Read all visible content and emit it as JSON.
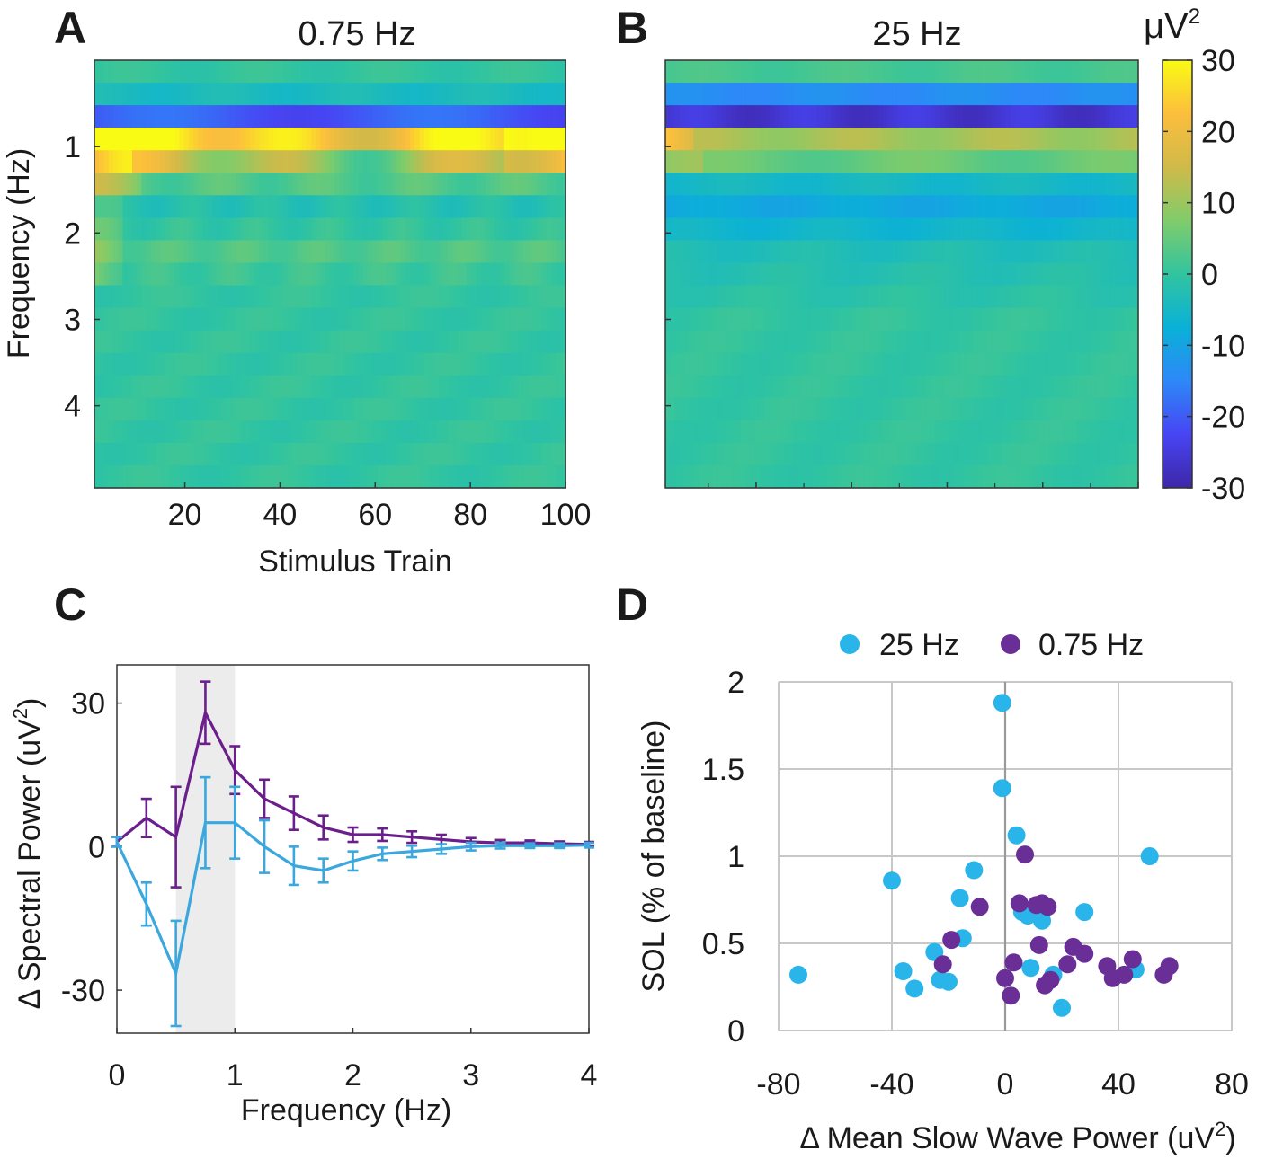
{
  "panel_letters": [
    "A",
    "B",
    "C",
    "D"
  ],
  "colorbar": {
    "unit_prefix": "μV",
    "unit_exp": "2",
    "range": [
      -30,
      30
    ],
    "ticks": [
      30,
      20,
      10,
      0,
      -10,
      -20,
      -30
    ],
    "colors": [
      "#3e26a8",
      "#4745f3",
      "#2d88f8",
      "#0ab1d7",
      "#31c49f",
      "#80cc6a",
      "#d0ba49",
      "#fcbe3d",
      "#f9fb14"
    ]
  },
  "chart_data": [
    {
      "id": "A",
      "type": "heatmap",
      "title": "0.75 Hz",
      "xlabel": "Stimulus Train",
      "ylabel": "Frequency (Hz)",
      "x_ticks": [
        20,
        40,
        60,
        80,
        100
      ],
      "xlim": [
        1,
        100
      ],
      "y_ticks": [
        1,
        2,
        3,
        4
      ],
      "ylim": [
        0,
        4.75
      ],
      "n_trains": 100,
      "freq_bins": [
        0.125,
        0.375,
        0.625,
        0.875,
        1.125,
        1.375,
        1.625,
        1.875,
        2.125,
        2.375,
        2.625,
        2.875,
        3.125,
        3.375,
        3.625,
        3.875,
        4.125,
        4.375,
        4.625
      ],
      "band_profile": [
        0,
        -4,
        -20,
        26,
        16,
        3,
        -2,
        0,
        3,
        1,
        0,
        0,
        0,
        0,
        0,
        0,
        0,
        0,
        0
      ]
    },
    {
      "id": "B",
      "type": "heatmap",
      "title": "25 Hz",
      "xlim": [
        1,
        100
      ],
      "ylim": [
        0,
        4.75
      ],
      "n_trains": 100,
      "freq_bins": [
        0.125,
        0.375,
        0.625,
        0.875,
        1.125,
        1.375,
        1.625,
        1.875,
        2.125,
        2.375,
        2.625,
        2.875,
        3.125,
        3.375,
        3.625,
        3.875,
        4.125,
        4.375,
        4.625
      ],
      "band_profile": [
        2,
        -14,
        -26,
        11,
        5,
        -5,
        -9,
        -6,
        -3,
        -2,
        -1,
        0,
        0,
        0,
        0,
        0,
        0,
        0,
        0
      ]
    },
    {
      "id": "C",
      "type": "line",
      "xlabel": "Frequency (Hz)",
      "ylabel_prefix": "Δ Spectral Power (uV",
      "ylabel_exp": "2",
      "ylabel_suffix": ")",
      "xlim": [
        0,
        4
      ],
      "ylim": [
        -39,
        38
      ],
      "x_ticks": [
        0,
        1,
        2,
        3,
        4
      ],
      "y_ticks": [
        30,
        0,
        -30
      ],
      "shaded_band": [
        0.5,
        1.0
      ],
      "x": [
        0,
        0.25,
        0.5,
        0.75,
        1.0,
        1.25,
        1.5,
        1.75,
        2.0,
        2.25,
        2.5,
        2.75,
        3.0,
        3.25,
        3.5,
        3.75,
        4.0
      ],
      "series": [
        {
          "name": "0.75 Hz",
          "color": "#6a1f8c",
          "values": [
            1,
            6,
            2,
            28,
            16,
            10,
            7,
            4,
            2.5,
            2.5,
            2,
            1.5,
            1,
            0.8,
            0.8,
            0.6,
            0.5
          ],
          "errors": [
            1,
            4,
            10.5,
            6.5,
            5,
            4,
            3.5,
            2.5,
            1.5,
            1.3,
            1.2,
            1,
            0.8,
            0.6,
            0.5,
            0.5,
            0.5
          ]
        },
        {
          "name": "25 Hz",
          "color": "#3aa7df",
          "values": [
            1,
            -12,
            -26.5,
            5,
            5,
            0,
            -4,
            -5,
            -3,
            -1.5,
            -1,
            -0.5,
            0,
            0.2,
            0.2,
            0.2,
            0.3
          ],
          "errors": [
            1,
            4.5,
            11,
            9.5,
            7.5,
            5.5,
            4,
            2.5,
            2,
            1.3,
            1.2,
            1,
            0.8,
            0.6,
            0.5,
            0.5,
            0.5
          ]
        }
      ]
    },
    {
      "id": "D",
      "type": "scatter",
      "xlabel_prefix": "Δ Mean Slow Wave Power (uV",
      "xlabel_exp": "2",
      "xlabel_suffix": ")",
      "ylabel": "SOL (% of baseline)",
      "xlim": [
        -80,
        80
      ],
      "ylim": [
        0,
        2
      ],
      "x_ticks": [
        -80,
        -40,
        0,
        40,
        80
      ],
      "y_ticks": [
        0,
        0.5,
        1,
        1.5,
        2
      ],
      "series": [
        {
          "name": "25 Hz",
          "color": "#29b5ea",
          "points": [
            [
              -73,
              0.32
            ],
            [
              -40,
              0.86
            ],
            [
              -36,
              0.34
            ],
            [
              -32,
              0.24
            ],
            [
              -25,
              0.45
            ],
            [
              -23,
              0.29
            ],
            [
              -20,
              0.28
            ],
            [
              -16,
              0.76
            ],
            [
              -15,
              0.53
            ],
            [
              -11,
              0.92
            ],
            [
              -1,
              1.88
            ],
            [
              -1,
              1.39
            ],
            [
              4,
              1.12
            ],
            [
              6,
              0.68
            ],
            [
              8,
              0.66
            ],
            [
              13,
              0.63
            ],
            [
              9,
              0.36
            ],
            [
              17,
              0.32
            ],
            [
              20,
              0.13
            ],
            [
              28,
              0.68
            ],
            [
              46,
              0.35
            ],
            [
              51,
              1.0
            ]
          ]
        },
        {
          "name": "0.75 Hz",
          "color": "#6a2f97",
          "points": [
            [
              -22,
              0.38
            ],
            [
              -19,
              0.52
            ],
            [
              -9,
              0.71
            ],
            [
              0,
              0.3
            ],
            [
              2,
              0.2
            ],
            [
              3,
              0.39
            ],
            [
              5,
              0.73
            ],
            [
              7,
              1.01
            ],
            [
              11,
              0.72
            ],
            [
              12,
              0.49
            ],
            [
              13,
              0.73
            ],
            [
              15,
              0.71
            ],
            [
              14,
              0.26
            ],
            [
              16,
              0.29
            ],
            [
              22,
              0.38
            ],
            [
              24,
              0.48
            ],
            [
              28,
              0.44
            ],
            [
              36,
              0.37
            ],
            [
              38,
              0.3
            ],
            [
              42,
              0.32
            ],
            [
              45,
              0.41
            ],
            [
              56,
              0.32
            ],
            [
              58,
              0.37
            ]
          ]
        }
      ]
    }
  ]
}
